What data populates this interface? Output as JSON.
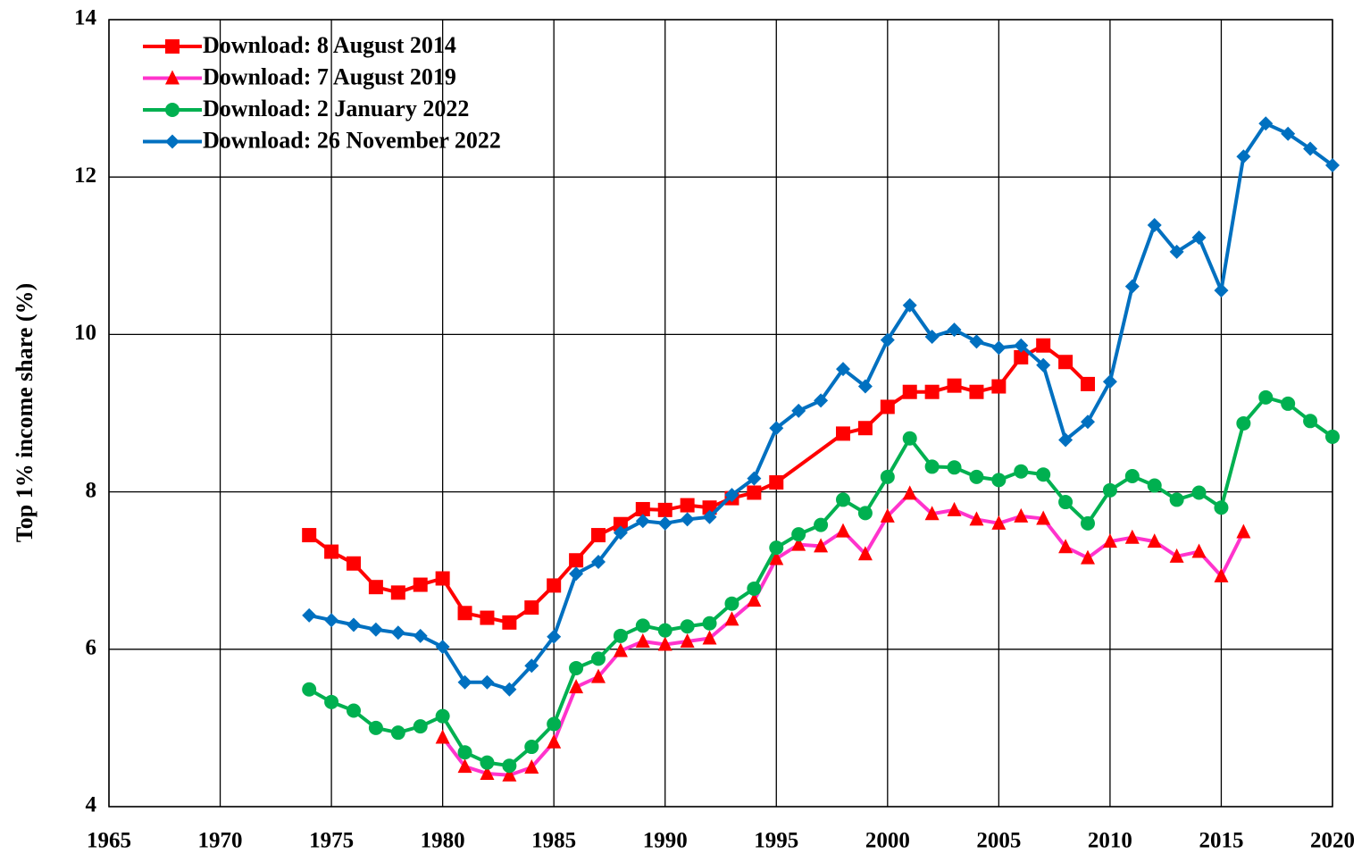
{
  "chart_data": {
    "type": "line",
    "ylabel": "Top 1% income share (%)",
    "xlim": [
      1965,
      2020
    ],
    "xticks": [
      1965,
      1970,
      1975,
      1980,
      1985,
      1990,
      1995,
      2000,
      2005,
      2010,
      2015,
      2020
    ],
    "ylim": [
      4,
      14
    ],
    "yticks": [
      4,
      6,
      8,
      10,
      12,
      14
    ],
    "grid": true,
    "legend": "upper left",
    "series": [
      {
        "name": "Download: 8 August 2014",
        "color": "#ff0000",
        "marker": "square",
        "x": [
          1974,
          1975,
          1976,
          1977,
          1978,
          1979,
          1980,
          1981,
          1982,
          1983,
          1984,
          1985,
          1986,
          1987,
          1988,
          1989,
          1990,
          1991,
          1992,
          1993,
          1994,
          1995,
          1998,
          1999,
          2000,
          2001,
          2002,
          2003,
          2004,
          2005,
          2006,
          2007,
          2008,
          2009
        ],
        "values": [
          7.45,
          7.24,
          7.09,
          6.79,
          6.72,
          6.82,
          6.9,
          6.46,
          6.4,
          6.34,
          6.53,
          6.81,
          7.13,
          7.45,
          7.59,
          7.78,
          7.77,
          7.83,
          7.8,
          7.92,
          7.99,
          8.12,
          8.74,
          8.81,
          9.08,
          9.27,
          9.27,
          9.35,
          9.27,
          9.34,
          9.71,
          9.86,
          9.65,
          9.37
        ]
      },
      {
        "name": "Download: 7 August 2019",
        "color": "#ff33cc",
        "marker_color": "#ff0000",
        "marker": "triangle",
        "x": [
          1980,
          1981,
          1982,
          1983,
          1984,
          1985,
          1986,
          1987,
          1988,
          1989,
          1990,
          1991,
          1992,
          1993,
          1994,
          1995,
          1996,
          1997,
          1998,
          1999,
          2000,
          2001,
          2002,
          2003,
          2004,
          2005,
          2006,
          2007,
          2008,
          2009,
          2010,
          2011,
          2012,
          2013,
          2014,
          2015,
          2016
        ],
        "values": [
          4.88,
          4.51,
          4.42,
          4.4,
          4.5,
          4.82,
          5.52,
          5.65,
          5.98,
          6.1,
          6.06,
          6.1,
          6.14,
          6.38,
          6.62,
          7.15,
          7.33,
          7.31,
          7.5,
          7.21,
          7.69,
          7.98,
          7.72,
          7.77,
          7.65,
          7.6,
          7.69,
          7.66,
          7.3,
          7.16,
          7.37,
          7.42,
          7.37,
          7.18,
          7.24,
          6.93,
          7.49
        ]
      },
      {
        "name": "Download: 2 January 2022",
        "color": "#00b050",
        "marker": "circle",
        "x": [
          1974,
          1975,
          1976,
          1977,
          1978,
          1979,
          1980,
          1981,
          1982,
          1983,
          1984,
          1985,
          1986,
          1987,
          1988,
          1989,
          1990,
          1991,
          1992,
          1993,
          1994,
          1995,
          1996,
          1997,
          1998,
          1999,
          2000,
          2001,
          2002,
          2003,
          2004,
          2005,
          2006,
          2007,
          2008,
          2009,
          2010,
          2011,
          2012,
          2013,
          2014,
          2015,
          2016,
          2017,
          2018,
          2019,
          2020
        ],
        "values": [
          5.49,
          5.33,
          5.22,
          5.0,
          4.94,
          5.02,
          5.15,
          4.69,
          4.56,
          4.52,
          4.76,
          5.05,
          5.76,
          5.88,
          6.17,
          6.3,
          6.24,
          6.29,
          6.33,
          6.58,
          6.77,
          7.29,
          7.46,
          7.58,
          7.9,
          7.73,
          8.19,
          8.68,
          8.32,
          8.31,
          8.19,
          8.15,
          8.26,
          8.22,
          7.87,
          7.6,
          8.02,
          8.2,
          8.08,
          7.9,
          7.99,
          7.8,
          8.87,
          9.2,
          9.12,
          8.9,
          8.7
        ]
      },
      {
        "name": "Download: 26 November 2022",
        "color": "#0070c0",
        "marker": "diamond",
        "x": [
          1974,
          1975,
          1976,
          1977,
          1978,
          1979,
          1980,
          1981,
          1982,
          1983,
          1984,
          1985,
          1986,
          1987,
          1988,
          1989,
          1990,
          1991,
          1992,
          1993,
          1994,
          1995,
          1996,
          1997,
          1998,
          1999,
          2000,
          2001,
          2002,
          2003,
          2004,
          2005,
          2006,
          2007,
          2008,
          2009,
          2010,
          2011,
          2012,
          2013,
          2014,
          2015,
          2016,
          2017,
          2018,
          2019,
          2020
        ],
        "values": [
          6.43,
          6.37,
          6.31,
          6.25,
          6.21,
          6.17,
          6.03,
          5.58,
          5.58,
          5.49,
          5.79,
          6.16,
          6.96,
          7.11,
          7.48,
          7.63,
          7.6,
          7.65,
          7.68,
          7.96,
          8.17,
          8.81,
          9.03,
          9.16,
          9.56,
          9.34,
          9.93,
          10.37,
          9.97,
          10.06,
          9.91,
          9.83,
          9.86,
          9.61,
          8.66,
          8.89,
          9.4,
          10.61,
          11.39,
          11.05,
          11.23,
          10.56,
          12.26,
          12.68,
          12.55,
          12.36,
          12.15
        ]
      }
    ]
  }
}
